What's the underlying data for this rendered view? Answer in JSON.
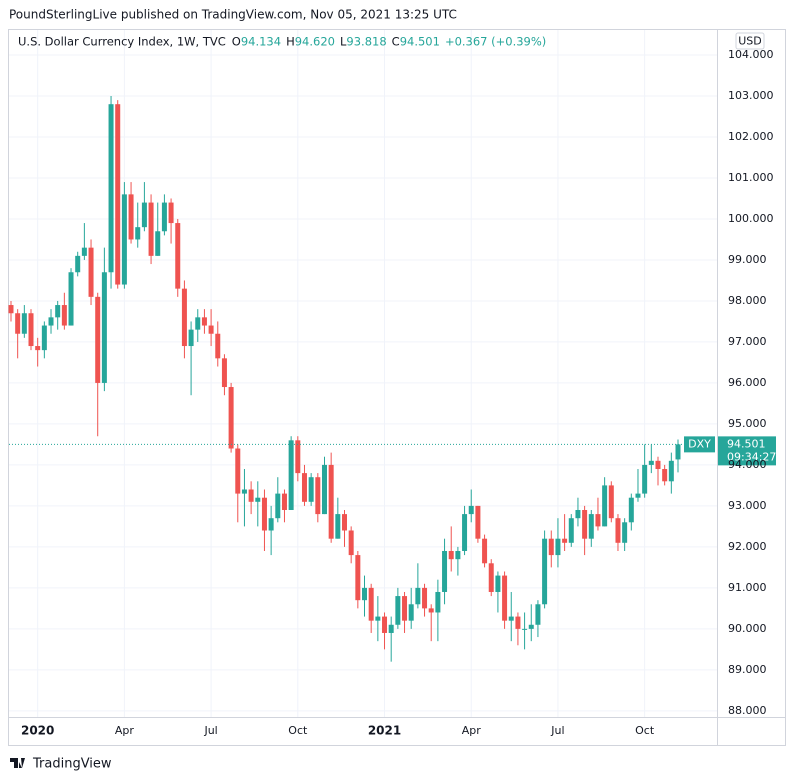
{
  "chart_data": {
    "type": "candlestick",
    "header": "PoundSterlingLive published on TradingView.com, Nov 05, 2021 13:25 UTC",
    "title": "U.S. Dollar Currency Index, 1W, TVC",
    "legend_items": [
      {
        "key": "O",
        "value": "94.134"
      },
      {
        "key": "H",
        "value": "94.620"
      },
      {
        "key": "L",
        "value": "93.818"
      },
      {
        "key": "C",
        "value": "94.501"
      }
    ],
    "change_label": "+0.367 (+0.39%)",
    "currency": "USD",
    "footer": "TradingView",
    "price_tag": {
      "symbol": "DXY",
      "price": "94.501",
      "countdown": "09:34:27"
    },
    "up_color": "#26a69a",
    "down_color": "#ef5350",
    "grid": true,
    "ylim": [
      87.85,
      104.61
    ],
    "yticks": [
      {
        "value": 88,
        "label": "88.000"
      },
      {
        "value": 89,
        "label": "89.000"
      },
      {
        "value": 90,
        "label": "90.000"
      },
      {
        "value": 91,
        "label": "91.000"
      },
      {
        "value": 92,
        "label": "92.000"
      },
      {
        "value": 93,
        "label": "93.000"
      },
      {
        "value": 94,
        "label": "94.000"
      },
      {
        "value": 95,
        "label": "95.000"
      },
      {
        "value": 96,
        "label": "96.000"
      },
      {
        "value": 97,
        "label": "97.000"
      },
      {
        "value": 98,
        "label": "98.000"
      },
      {
        "value": 99,
        "label": "99.000"
      },
      {
        "value": 100,
        "label": "100.000"
      },
      {
        "value": 101,
        "label": "101.000"
      },
      {
        "value": 102,
        "label": "102.000"
      },
      {
        "value": 103,
        "label": "103.000"
      },
      {
        "value": 104,
        "label": "104.000"
      }
    ],
    "categories": [
      null,
      null,
      null,
      null,
      "2020",
      null,
      null,
      null,
      null,
      null,
      null,
      null,
      null,
      null,
      null,
      null,
      null,
      "Apr",
      null,
      null,
      null,
      null,
      null,
      null,
      null,
      null,
      null,
      null,
      null,
      null,
      "Jul",
      null,
      null,
      null,
      null,
      null,
      null,
      null,
      null,
      null,
      null,
      null,
      null,
      "Oct",
      null,
      null,
      null,
      null,
      null,
      null,
      null,
      null,
      null,
      null,
      null,
      null,
      "2021",
      null,
      null,
      null,
      null,
      null,
      null,
      null,
      null,
      null,
      null,
      null,
      null,
      "Apr",
      null,
      null,
      null,
      null,
      null,
      null,
      null,
      null,
      null,
      null,
      null,
      null,
      "Jul",
      null,
      null,
      null,
      null,
      null,
      null,
      null,
      null,
      null,
      null,
      null,
      null,
      "Oct",
      null,
      null,
      null,
      null,
      null
    ],
    "open": [
      97.9,
      97.7,
      97.2,
      97.7,
      96.9,
      96.8,
      97.4,
      97.6,
      97.9,
      97.4,
      98.7,
      99.1,
      99.3,
      98.1,
      96.0,
      98.7,
      102.8,
      98.4,
      100.6,
      99.5,
      99.8,
      100.4,
      99.1,
      99.7,
      100.4,
      99.9,
      98.3,
      96.9,
      97.3,
      97.6,
      97.4,
      97.2,
      96.6,
      95.9,
      94.4,
      93.3,
      93.4,
      93.1,
      93.2,
      92.4,
      92.7,
      93.3,
      92.9,
      94.6,
      93.8,
      93.1,
      93.7,
      92.8,
      94.0,
      92.2,
      92.8,
      92.4,
      91.8,
      90.7,
      91.0,
      90.2,
      90.3,
      89.9,
      90.1,
      90.8,
      90.2,
      90.6,
      91.0,
      90.5,
      90.4,
      90.9,
      91.9,
      91.7,
      91.9,
      92.8,
      93.0,
      92.2,
      91.6,
      90.9,
      91.3,
      90.2,
      90.3,
      90.0,
      90.0,
      90.1,
      90.6,
      92.2,
      91.8,
      92.2,
      92.1,
      92.7,
      92.9,
      92.2,
      92.8,
      92.5,
      93.5,
      92.7,
      92.1,
      92.6,
      93.2,
      93.3,
      94.0,
      94.1,
      93.9,
      93.6,
      94.134
    ],
    "high": [
      98.0,
      97.8,
      97.9,
      97.8,
      97.1,
      97.5,
      97.8,
      98.0,
      98.2,
      98.8,
      99.2,
      99.9,
      99.5,
      98.2,
      99.3,
      103.0,
      102.9,
      100.9,
      100.9,
      100.4,
      100.9,
      100.6,
      100.4,
      100.6,
      100.5,
      100.0,
      98.5,
      97.5,
      97.8,
      97.8,
      97.8,
      97.5,
      96.7,
      96.0,
      94.5,
      93.9,
      93.6,
      93.6,
      93.4,
      93.0,
      93.7,
      93.4,
      94.7,
      94.7,
      94.0,
      93.8,
      93.8,
      94.2,
      94.3,
      93.2,
      92.9,
      92.5,
      91.9,
      91.3,
      91.1,
      90.8,
      90.4,
      90.3,
      91.0,
      90.9,
      91.0,
      91.6,
      91.1,
      90.6,
      91.2,
      92.2,
      92.5,
      92.0,
      93.0,
      93.4,
      93.0,
      92.3,
      91.7,
      91.4,
      91.4,
      90.9,
      90.4,
      90.4,
      90.6,
      90.7,
      92.4,
      92.4,
      92.7,
      92.8,
      92.8,
      93.2,
      93.0,
      92.9,
      93.2,
      93.7,
      93.6,
      92.8,
      92.7,
      93.3,
      93.9,
      94.5,
      94.5,
      94.2,
      94.0,
      94.3,
      94.62
    ],
    "low": [
      97.5,
      96.6,
      97.1,
      96.8,
      96.4,
      96.6,
      97.2,
      97.3,
      97.3,
      97.4,
      98.6,
      99.0,
      97.9,
      94.7,
      95.8,
      98.3,
      98.3,
      98.3,
      99.4,
      99.3,
      99.7,
      98.9,
      99.1,
      99.6,
      99.4,
      98.1,
      96.6,
      95.7,
      97.0,
      97.2,
      96.9,
      96.4,
      95.7,
      94.3,
      92.6,
      92.5,
      92.8,
      92.5,
      91.9,
      91.8,
      92.6,
      92.6,
      92.9,
      93.6,
      93.0,
      93.0,
      92.6,
      92.8,
      92.1,
      92.2,
      92.0,
      91.6,
      90.5,
      90.3,
      89.9,
      89.7,
      89.5,
      89.2,
      90.0,
      89.9,
      90.0,
      90.5,
      90.3,
      89.7,
      89.7,
      90.6,
      91.4,
      91.3,
      91.8,
      92.6,
      92.1,
      91.5,
      90.8,
      90.4,
      90.0,
      89.7,
      89.6,
      89.5,
      89.7,
      89.8,
      90.5,
      91.5,
      91.5,
      91.9,
      92.0,
      92.5,
      91.8,
      92.0,
      92.4,
      92.5,
      92.6,
      91.9,
      91.9,
      92.4,
      93.1,
      93.2,
      93.8,
      93.5,
      93.5,
      93.3,
      93.818
    ],
    "close": [
      97.7,
      97.2,
      97.7,
      96.9,
      96.8,
      97.4,
      97.6,
      97.9,
      97.4,
      98.7,
      99.1,
      99.3,
      98.1,
      96.0,
      98.7,
      102.8,
      98.4,
      100.6,
      99.5,
      99.8,
      100.4,
      99.1,
      99.7,
      100.4,
      99.9,
      98.3,
      96.9,
      97.3,
      97.6,
      97.4,
      97.2,
      96.6,
      95.9,
      94.4,
      93.3,
      93.4,
      93.1,
      93.2,
      92.4,
      92.7,
      93.3,
      92.9,
      94.6,
      93.8,
      93.1,
      93.7,
      92.8,
      94.0,
      92.2,
      92.8,
      92.4,
      91.8,
      90.7,
      91.0,
      90.2,
      90.3,
      89.9,
      90.1,
      90.8,
      90.2,
      90.6,
      91.0,
      90.5,
      90.4,
      90.9,
      91.9,
      91.7,
      91.9,
      92.8,
      93.0,
      92.2,
      91.6,
      90.9,
      91.3,
      90.2,
      90.3,
      90.0,
      90.0,
      90.1,
      90.6,
      92.2,
      91.8,
      92.2,
      92.1,
      92.7,
      92.9,
      92.2,
      92.8,
      92.5,
      93.5,
      92.7,
      92.1,
      92.6,
      93.2,
      93.3,
      94.0,
      94.1,
      93.9,
      93.6,
      94.1,
      94.501
    ]
  }
}
